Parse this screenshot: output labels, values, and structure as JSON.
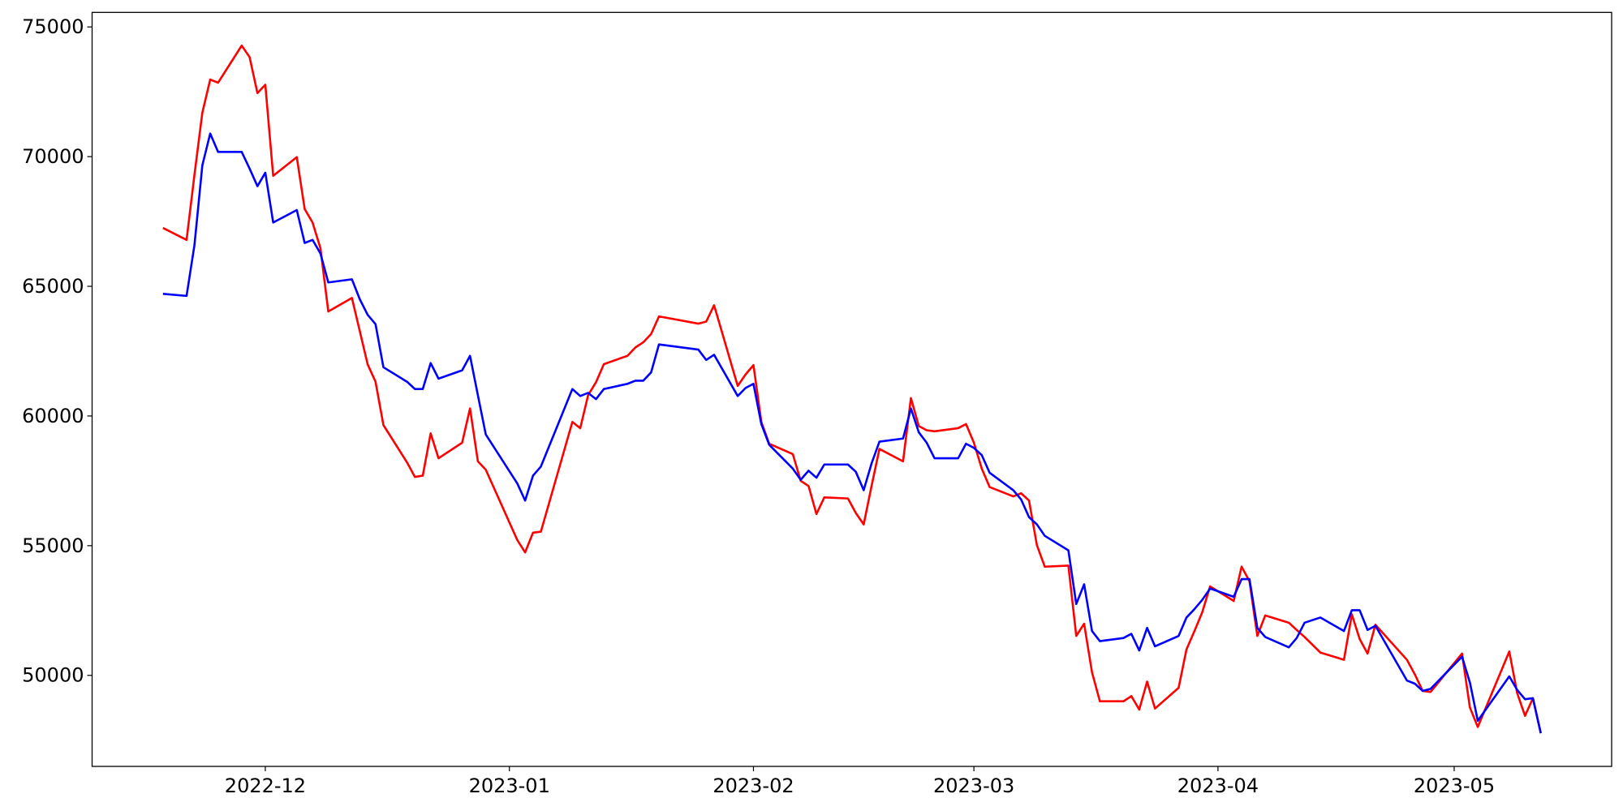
{
  "chart_data": {
    "type": "line",
    "x": [
      "2022-11-18",
      "2022-11-21",
      "2022-11-22",
      "2022-11-23",
      "2022-11-24",
      "2022-11-25",
      "2022-11-28",
      "2022-11-29",
      "2022-11-30",
      "2022-12-01",
      "2022-12-02",
      "2022-12-05",
      "2022-12-06",
      "2022-12-07",
      "2022-12-08",
      "2022-12-09",
      "2022-12-12",
      "2022-12-13",
      "2022-12-14",
      "2022-12-15",
      "2022-12-16",
      "2022-12-19",
      "2022-12-20",
      "2022-12-21",
      "2022-12-22",
      "2022-12-23",
      "2022-12-26",
      "2022-12-27",
      "2022-12-28",
      "2022-12-29",
      "2023-01-02",
      "2023-01-03",
      "2023-01-04",
      "2023-01-05",
      "2023-01-09",
      "2023-01-10",
      "2023-01-11",
      "2023-01-12",
      "2023-01-13",
      "2023-01-16",
      "2023-01-17",
      "2023-01-18",
      "2023-01-19",
      "2023-01-20",
      "2023-01-25",
      "2023-01-26",
      "2023-01-27",
      "2023-01-30",
      "2023-01-31",
      "2023-02-01",
      "2023-02-02",
      "2023-02-03",
      "2023-02-06",
      "2023-02-07",
      "2023-02-08",
      "2023-02-09",
      "2023-02-10",
      "2023-02-13",
      "2023-02-14",
      "2023-02-15",
      "2023-02-16",
      "2023-02-17",
      "2023-02-20",
      "2023-02-21",
      "2023-02-22",
      "2023-02-23",
      "2023-02-24",
      "2023-02-27",
      "2023-02-28",
      "2023-03-01",
      "2023-03-02",
      "2023-03-03",
      "2023-03-06",
      "2023-03-07",
      "2023-03-08",
      "2023-03-09",
      "2023-03-10",
      "2023-03-13",
      "2023-03-14",
      "2023-03-15",
      "2023-03-16",
      "2023-03-17",
      "2023-03-20",
      "2023-03-21",
      "2023-03-22",
      "2023-03-23",
      "2023-03-24",
      "2023-03-27",
      "2023-03-28",
      "2023-03-29",
      "2023-03-30",
      "2023-03-31",
      "2023-04-03",
      "2023-04-04",
      "2023-04-05",
      "2023-04-06",
      "2023-04-07",
      "2023-04-10",
      "2023-04-11",
      "2023-04-12",
      "2023-04-14",
      "2023-04-17",
      "2023-04-18",
      "2023-04-19",
      "2023-04-20",
      "2023-04-21",
      "2023-04-25",
      "2023-04-26",
      "2023-04-27",
      "2023-04-28",
      "2023-05-02",
      "2023-05-03",
      "2023-05-04",
      "2023-05-08",
      "2023-05-09",
      "2023-05-10",
      "2023-05-11",
      "2023-05-12"
    ],
    "series": [
      {
        "color": "#ff0000",
        "values": [
          67250,
          66790,
          69300,
          71690,
          72970,
          72850,
          74280,
          73840,
          72450,
          72770,
          69260,
          69980,
          67980,
          67460,
          66470,
          64030,
          64550,
          63270,
          61990,
          61320,
          59650,
          58210,
          57650,
          57700,
          59330,
          58370,
          58970,
          60290,
          58250,
          57930,
          55220,
          54740,
          55500,
          55540,
          59770,
          59530,
          60800,
          61300,
          62000,
          62320,
          62640,
          62840,
          63160,
          63840,
          63560,
          63640,
          64270,
          61160,
          61600,
          61960,
          59770,
          58930,
          58530,
          57500,
          57300,
          56220,
          56860,
          56820,
          56260,
          55820,
          57300,
          58730,
          58250,
          60690,
          59610,
          59450,
          59410,
          59530,
          59690,
          58970,
          57970,
          57260,
          56900,
          57020,
          56740,
          55020,
          54190,
          54230,
          51520,
          51990,
          50120,
          49000,
          49000,
          49200,
          48680,
          49760,
          48720,
          49520,
          51000,
          51700,
          52430,
          53430,
          52870,
          54190,
          53630,
          51520,
          52310,
          52030,
          51750,
          51480,
          50880,
          50600,
          52350,
          51400,
          50840,
          51950,
          50600,
          50040,
          49400,
          49360,
          50840,
          48760,
          48010,
          50920,
          49320,
          48440,
          49120,
          47770
        ]
      },
      {
        "color": "#0000ff",
        "values": [
          64710,
          64630,
          66590,
          69660,
          70890,
          70180,
          70180,
          69540,
          68860,
          69380,
          67460,
          67940,
          66670,
          66790,
          66270,
          65150,
          65270,
          64500,
          63900,
          63540,
          61880,
          61320,
          61040,
          61040,
          62040,
          61440,
          61760,
          62320,
          60800,
          59290,
          57400,
          56740,
          57700,
          58050,
          61040,
          60770,
          60890,
          60650,
          61040,
          61240,
          61360,
          61360,
          61680,
          62760,
          62560,
          62160,
          62360,
          60770,
          61080,
          61240,
          59690,
          58890,
          57970,
          57540,
          57890,
          57620,
          58130,
          58130,
          57850,
          57140,
          58170,
          59010,
          59130,
          60290,
          59370,
          58970,
          58370,
          58370,
          58930,
          58770,
          58490,
          57810,
          57140,
          56780,
          56100,
          55820,
          55380,
          54820,
          52750,
          53510,
          51710,
          51320,
          51440,
          51600,
          50960,
          51830,
          51120,
          51520,
          52230,
          52550,
          52910,
          53350,
          53030,
          53710,
          53710,
          51830,
          51480,
          51080,
          51440,
          52030,
          52230,
          51710,
          52510,
          52510,
          51750,
          51910,
          49800,
          49680,
          49400,
          49480,
          50720,
          49720,
          48250,
          49960,
          49440,
          49080,
          49120,
          47770
        ]
      }
    ],
    "xlim": [
      "2022-11-09",
      "2023-05-21"
    ],
    "xticks": [
      "2022-12",
      "2023-01",
      "2023-02",
      "2023-03",
      "2023-04",
      "2023-05"
    ],
    "ylim": [
      46490,
      75560
    ],
    "yticks": [
      50000,
      55000,
      60000,
      65000,
      70000,
      75000
    ],
    "grid": false
  }
}
